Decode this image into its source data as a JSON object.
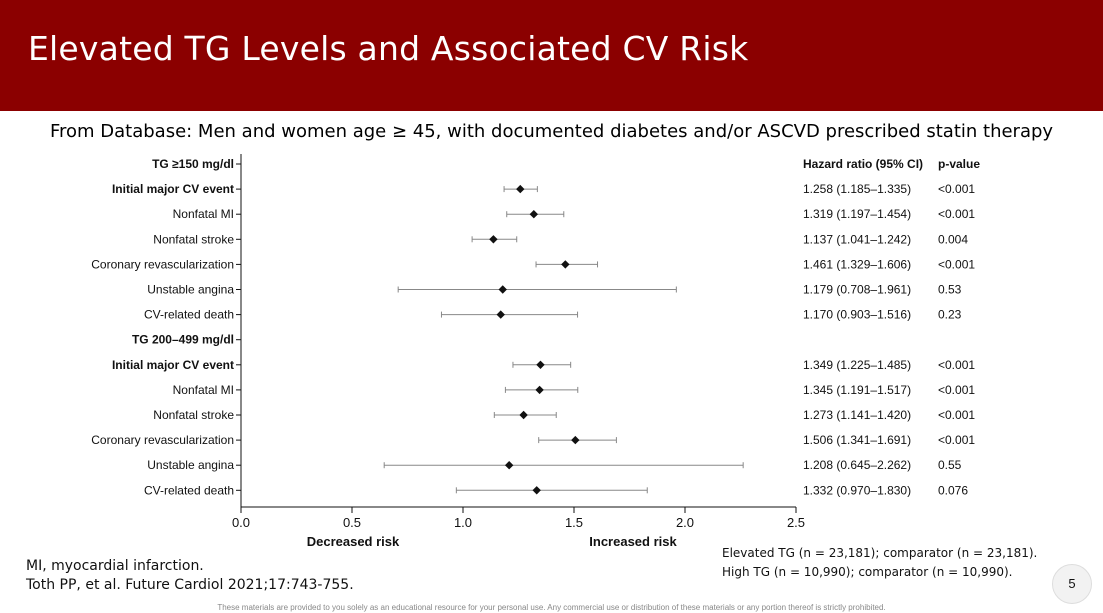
{
  "slide": {
    "title": "Elevated TG Levels and Associated CV Risk",
    "subtitle": "From Database: Men and women age ≥ 45, with documented diabetes and/or ASCVD prescribed statin therapy",
    "notes": [
      "Elevated TG (n = 23,181); comparator (n = 23,181).",
      "High TG (n = 10,990); comparator (n = 10,990)."
    ],
    "footnotes": [
      "MI, myocardial infarction.",
      "Toth PP, et al. Future Cardiol 2021;17:743-755."
    ],
    "page_number": "5",
    "disclaimer": "These materials are provided to you solely as an educational resource for your personal use. Any commercial use or distribution of these materials or any portion thereof is strictly prohibited.",
    "colors": {
      "header": "#8b0000",
      "marker": "#111111",
      "ci_line": "#888888"
    }
  },
  "chart_data": {
    "type": "forest",
    "column_headers": {
      "hr": "Hazard ratio (95% CI)",
      "p": "p-value"
    },
    "xlim": [
      0,
      2.5
    ],
    "xticks": [
      {
        "v": 0,
        "label": "0.0"
      },
      {
        "v": 0.5,
        "label": "0.5"
      },
      {
        "v": 1,
        "label": "1.0"
      },
      {
        "v": 1.5,
        "label": "1.5"
      },
      {
        "v": 2,
        "label": "2.0"
      },
      {
        "v": 2.5,
        "label": "2.5"
      }
    ],
    "axis_annotations": {
      "left": "Decreased risk",
      "right": "Increased risk"
    },
    "rows": [
      {
        "label": "TG ≥150 mg/dl",
        "header": true
      },
      {
        "label": "Initial major CV event",
        "bold": true,
        "hr": 1.258,
        "lo": 1.185,
        "hi": 1.335,
        "hr_text": "1.258 (1.185–1.335)",
        "p": "<0.001"
      },
      {
        "label": "Nonfatal MI",
        "hr": 1.319,
        "lo": 1.197,
        "hi": 1.454,
        "hr_text": "1.319 (1.197–1.454)",
        "p": "<0.001"
      },
      {
        "label": "Nonfatal stroke",
        "hr": 1.137,
        "lo": 1.041,
        "hi": 1.242,
        "hr_text": "1.137 (1.041–1.242)",
        "p": "0.004"
      },
      {
        "label": "Coronary revascularization",
        "hr": 1.461,
        "lo": 1.329,
        "hi": 1.606,
        "hr_text": "1.461 (1.329–1.606)",
        "p": "<0.001"
      },
      {
        "label": "Unstable angina",
        "hr": 1.179,
        "lo": 0.708,
        "hi": 1.961,
        "hr_text": "1.179 (0.708–1.961)",
        "p": "0.53"
      },
      {
        "label": "CV-related death",
        "hr": 1.17,
        "lo": 0.903,
        "hi": 1.516,
        "hr_text": "1.170 (0.903–1.516)",
        "p": "0.23"
      },
      {
        "label": "TG 200–499 mg/dl",
        "header": true
      },
      {
        "label": "Initial major CV event",
        "bold": true,
        "hr": 1.349,
        "lo": 1.225,
        "hi": 1.485,
        "hr_text": "1.349 (1.225–1.485)",
        "p": "<0.001"
      },
      {
        "label": "Nonfatal MI",
        "hr": 1.345,
        "lo": 1.191,
        "hi": 1.517,
        "hr_text": "1.345 (1.191–1.517)",
        "p": "<0.001"
      },
      {
        "label": "Nonfatal stroke",
        "hr": 1.273,
        "lo": 1.141,
        "hi": 1.42,
        "hr_text": "1.273 (1.141–1.420)",
        "p": "<0.001"
      },
      {
        "label": "Coronary revascularization",
        "hr": 1.506,
        "lo": 1.341,
        "hi": 1.691,
        "hr_text": "1.506 (1.341–1.691)",
        "p": "<0.001"
      },
      {
        "label": "Unstable angina",
        "hr": 1.208,
        "lo": 0.645,
        "hi": 2.262,
        "hr_text": "1.208 (0.645–2.262)",
        "p": "0.55"
      },
      {
        "label": "CV-related death",
        "hr": 1.332,
        "lo": 0.97,
        "hi": 1.83,
        "hr_text": "1.332 (0.970–1.830)",
        "p": "0.076"
      }
    ]
  }
}
